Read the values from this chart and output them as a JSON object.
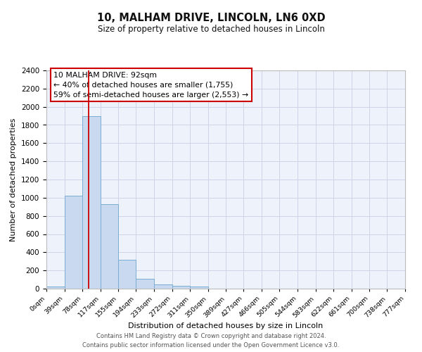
{
  "title": "10, MALHAM DRIVE, LINCOLN, LN6 0XD",
  "subtitle": "Size of property relative to detached houses in Lincoln",
  "xlabel": "Distribution of detached houses by size in Lincoln",
  "ylabel": "Number of detached properties",
  "bin_edges": [
    0,
    39,
    78,
    117,
    155,
    194,
    233,
    272,
    311,
    350,
    389,
    427,
    466,
    505,
    544,
    583,
    622,
    661,
    700,
    738,
    777
  ],
  "bin_labels": [
    "0sqm",
    "39sqm",
    "78sqm",
    "117sqm",
    "155sqm",
    "194sqm",
    "233sqm",
    "272sqm",
    "311sqm",
    "350sqm",
    "389sqm",
    "427sqm",
    "466sqm",
    "505sqm",
    "544sqm",
    "583sqm",
    "622sqm",
    "661sqm",
    "700sqm",
    "738sqm",
    "777sqm"
  ],
  "counts": [
    25,
    1025,
    1900,
    930,
    320,
    105,
    50,
    30,
    20,
    0,
    0,
    0,
    0,
    0,
    0,
    0,
    0,
    0,
    0,
    0
  ],
  "bar_color": "#c8d9f0",
  "bar_edge_color": "#7aadd4",
  "red_line_x": 92,
  "annotation_line1": "10 MALHAM DRIVE: 92sqm",
  "annotation_line2": "← 40% of detached houses are smaller (1,755)",
  "annotation_line3": "59% of semi-detached houses are larger (2,553) →",
  "annotation_box_color": "#ffffff",
  "annotation_box_edge": "#cc0000",
  "red_line_color": "#cc0000",
  "ylim": [
    0,
    2400
  ],
  "yticks": [
    0,
    200,
    400,
    600,
    800,
    1000,
    1200,
    1400,
    1600,
    1800,
    2000,
    2200,
    2400
  ],
  "footer1": "Contains HM Land Registry data © Crown copyright and database right 2024.",
  "footer2": "Contains public sector information licensed under the Open Government Licence v3.0.",
  "grid_color": "#cdd5e8",
  "background_color": "#eef2fa"
}
